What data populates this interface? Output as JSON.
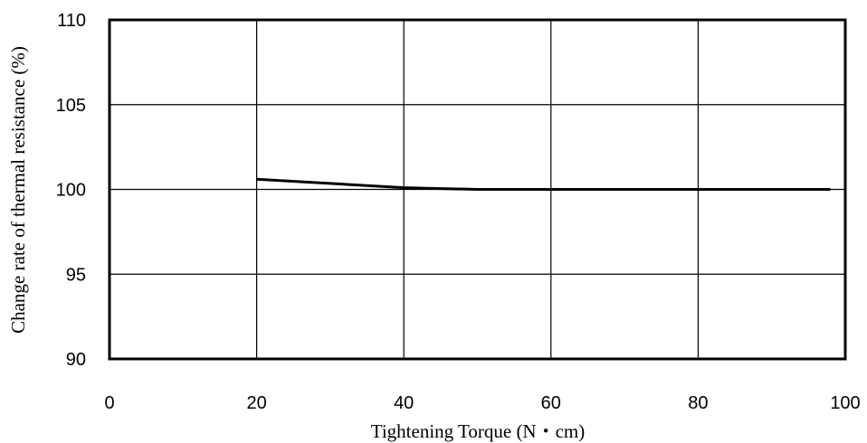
{
  "chart_data": {
    "type": "line",
    "title": "",
    "xlabel": "Tightening Torque (N・cm)",
    "ylabel": "Change rate of thermal resistance (%)",
    "xlim": [
      0,
      100
    ],
    "ylim": [
      90,
      110
    ],
    "xticks": [
      0,
      20,
      40,
      60,
      80,
      100
    ],
    "yticks": [
      90,
      95,
      100,
      105,
      110
    ],
    "grid": true,
    "legend": "none",
    "series": [
      {
        "x": [
          20,
          30,
          40,
          50,
          60,
          70,
          80,
          90,
          98
        ],
        "y": [
          100.6,
          100.35,
          100.1,
          100.0,
          100.0,
          100.0,
          100.0,
          100.0,
          100.0
        ]
      }
    ]
  }
}
